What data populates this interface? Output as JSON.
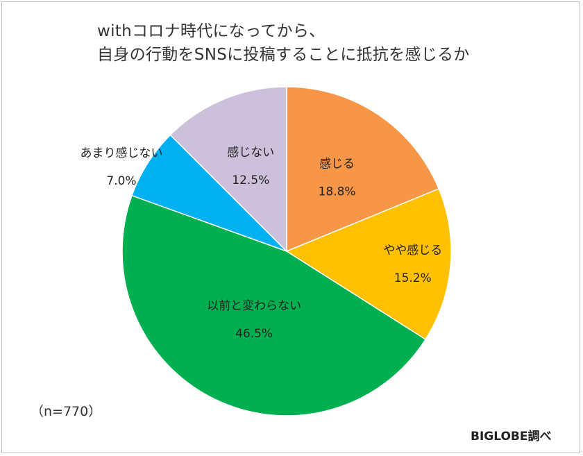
{
  "chart_data": {
    "type": "pie",
    "title_lines": [
      "withコロナ時代になってから、",
      "自身の行動をSNSに投稿することに抵抗を感じるか"
    ],
    "sample_size": "（n=770）",
    "source": "BIGLOBE調べ",
    "slices": [
      {
        "label": "感じる",
        "value": 18.8,
        "value_label": "18.8%",
        "color": "#F79646"
      },
      {
        "label": "やや感じる",
        "value": 15.2,
        "value_label": "15.2%",
        "color": "#FFC000"
      },
      {
        "label": "以前と変わらない",
        "value": 46.5,
        "value_label": "46.5%",
        "color": "#00B050"
      },
      {
        "label": "あまり感じない",
        "value": 7.0,
        "value_label": "7.0%",
        "color": "#00B0F0"
      },
      {
        "label": "感じない",
        "value": 12.5,
        "value_label": "12.5%",
        "color": "#CCC0DA"
      }
    ],
    "start_angle": "12 o'clock",
    "direction": "clockwise",
    "label_placement": "inside, except あまり感じない outside"
  }
}
